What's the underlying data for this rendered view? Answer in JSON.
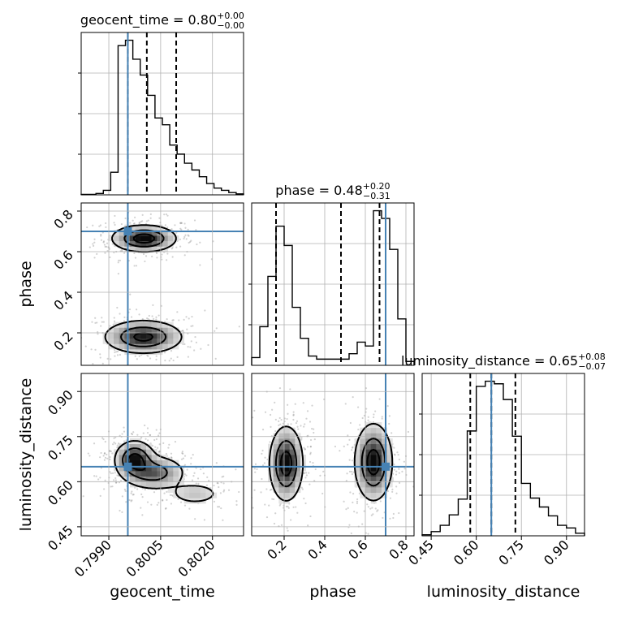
{
  "chart_data": {
    "type": "corner",
    "colors": {
      "truth": "#4682b4",
      "hist": "#000000",
      "grid": "#b0b0b0",
      "points": "#7f7f7f"
    },
    "parameters": [
      {
        "key": "geocent_time",
        "label": "geocent_time",
        "title_prefix": "geocent_time = 0.80",
        "title_sup": "+0.00",
        "title_sub": "−0.00",
        "range": [
          0.7982,
          0.8029
        ],
        "ticks": [
          0.799,
          0.8005,
          0.802
        ],
        "tick_labels": [
          "0.7990",
          "0.8005",
          "0.8020"
        ],
        "truth": 0.79955,
        "quantiles": [
          0.79955,
          0.8001,
          0.80095
        ],
        "hist_bins": [
          0.7982,
          0.8029,
          22
        ],
        "hist_counts": [
          1,
          1,
          3,
          10,
          50,
          330,
          342,
          300,
          265,
          220,
          170,
          155,
          110,
          90,
          70,
          55,
          40,
          25,
          15,
          10,
          5,
          2
        ]
      },
      {
        "key": "phase",
        "label": "phase",
        "title_prefix": "phase = 0.48",
        "title_sup": "+0.20",
        "title_sub": "−0.31",
        "range": [
          0.04,
          0.84
        ],
        "ticks": [
          0.2,
          0.4,
          0.6,
          0.8
        ],
        "tick_labels": [
          "0.2",
          "0.4",
          "0.6",
          "0.8"
        ],
        "truth": 0.7,
        "quantiles": [
          0.16,
          0.48,
          0.67
        ],
        "hist_bins": [
          0.04,
          0.84,
          20
        ],
        "hist_counts": [
          10,
          50,
          115,
          180,
          155,
          75,
          35,
          12,
          8,
          8,
          8,
          8,
          15,
          30,
          25,
          200,
          190,
          150,
          60,
          5
        ]
      },
      {
        "key": "luminosity_distance",
        "label": "luminosity_distance",
        "title_prefix": "luminosity_distance = 0.65",
        "title_sup": "+0.08",
        "title_sub": "−0.07",
        "range": [
          0.42,
          0.96
        ],
        "ticks": [
          0.45,
          0.6,
          0.75,
          0.9
        ],
        "tick_labels": [
          "0.45",
          "0.60",
          "0.75",
          "0.90"
        ],
        "truth": 0.65,
        "quantiles": [
          0.58,
          0.65,
          0.73
        ],
        "hist_bins": [
          0.42,
          0.96,
          18
        ],
        "hist_counts": [
          2,
          8,
          20,
          40,
          70,
          200,
          285,
          295,
          290,
          260,
          190,
          100,
          72,
          55,
          38,
          20,
          15,
          5
        ]
      }
    ],
    "density_2d": [
      {
        "x": "geocent_time",
        "y": "phase",
        "blobs": [
          {
            "cx": 0.80002,
            "cy": 0.665,
            "sx": 0.00045,
            "sy": 0.032,
            "w": 1.0
          },
          {
            "cx": 0.8,
            "cy": 0.18,
            "sx": 0.00055,
            "sy": 0.04,
            "w": 0.9
          }
        ],
        "levels": [
          0.12,
          0.45,
          0.8
        ]
      },
      {
        "x": "geocent_time",
        "y": "luminosity_distance",
        "blobs": [
          {
            "cx": 0.79975,
            "cy": 0.675,
            "sx": 0.00028,
            "sy": 0.03,
            "w": 1.0
          },
          {
            "cx": 0.8003,
            "cy": 0.63,
            "sx": 0.00045,
            "sy": 0.028,
            "w": 0.7
          },
          {
            "cx": 0.8015,
            "cy": 0.56,
            "sx": 0.00045,
            "sy": 0.022,
            "w": 0.25
          }
        ],
        "levels": [
          0.12,
          0.45,
          0.8
        ]
      },
      {
        "x": "phase",
        "y": "luminosity_distance",
        "blobs": [
          {
            "cx": 0.21,
            "cy": 0.66,
            "sx": 0.04,
            "sy": 0.06,
            "w": 1.0
          },
          {
            "cx": 0.64,
            "cy": 0.665,
            "sx": 0.045,
            "sy": 0.062,
            "w": 1.0
          }
        ],
        "levels": [
          0.12,
          0.45,
          0.8
        ]
      }
    ]
  }
}
